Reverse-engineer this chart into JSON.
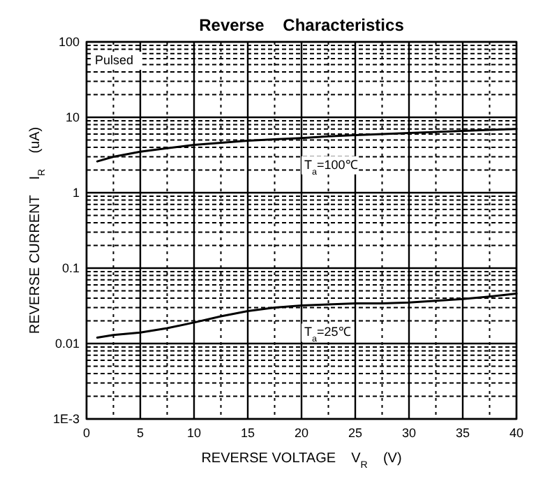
{
  "chart_data": {
    "type": "line",
    "title": "Reverse    Characteristics",
    "xlabel": "REVERSE VOLTAGE    V$_{R}$    (V)",
    "ylabel": "REVERSE CURRENT    I$_{R}$    (uA)",
    "log": "y",
    "grid": true,
    "line_style": "solid",
    "marker": "none",
    "xlim": [
      0,
      40
    ],
    "xticks": [
      0,
      5,
      10,
      15,
      20,
      25,
      30,
      35,
      40
    ],
    "ylim": [
      0.001,
      100
    ],
    "yticks": [
      {
        "value": 0.001,
        "label": "1E-3"
      },
      0.01,
      0.1,
      1,
      10,
      100
    ],
    "x": [
      1,
      2.5,
      5,
      7.5,
      10,
      12.5,
      15,
      17.5,
      20,
      22.5,
      25,
      27.5,
      30,
      32.5,
      35,
      37.5,
      40
    ],
    "series": [
      {
        "color": "#000000",
        "values": [
          2.6,
          3.0,
          3.5,
          3.9,
          4.3,
          4.6,
          4.9,
          5.1,
          5.3,
          5.6,
          5.8,
          6.0,
          6.2,
          6.4,
          6.6,
          6.8,
          7.0
        ]
      },
      {
        "color": "#000000",
        "values": [
          0.012,
          0.013,
          0.014,
          0.016,
          0.019,
          0.023,
          0.027,
          0.03,
          0.032,
          0.033,
          0.034,
          0.034,
          0.035,
          0.037,
          0.039,
          0.042,
          0.046
        ]
      }
    ],
    "annotations": [
      "Pulsed",
      "T$_{a}$=100℃",
      "T$_{a}$=25℃"
    ]
  }
}
